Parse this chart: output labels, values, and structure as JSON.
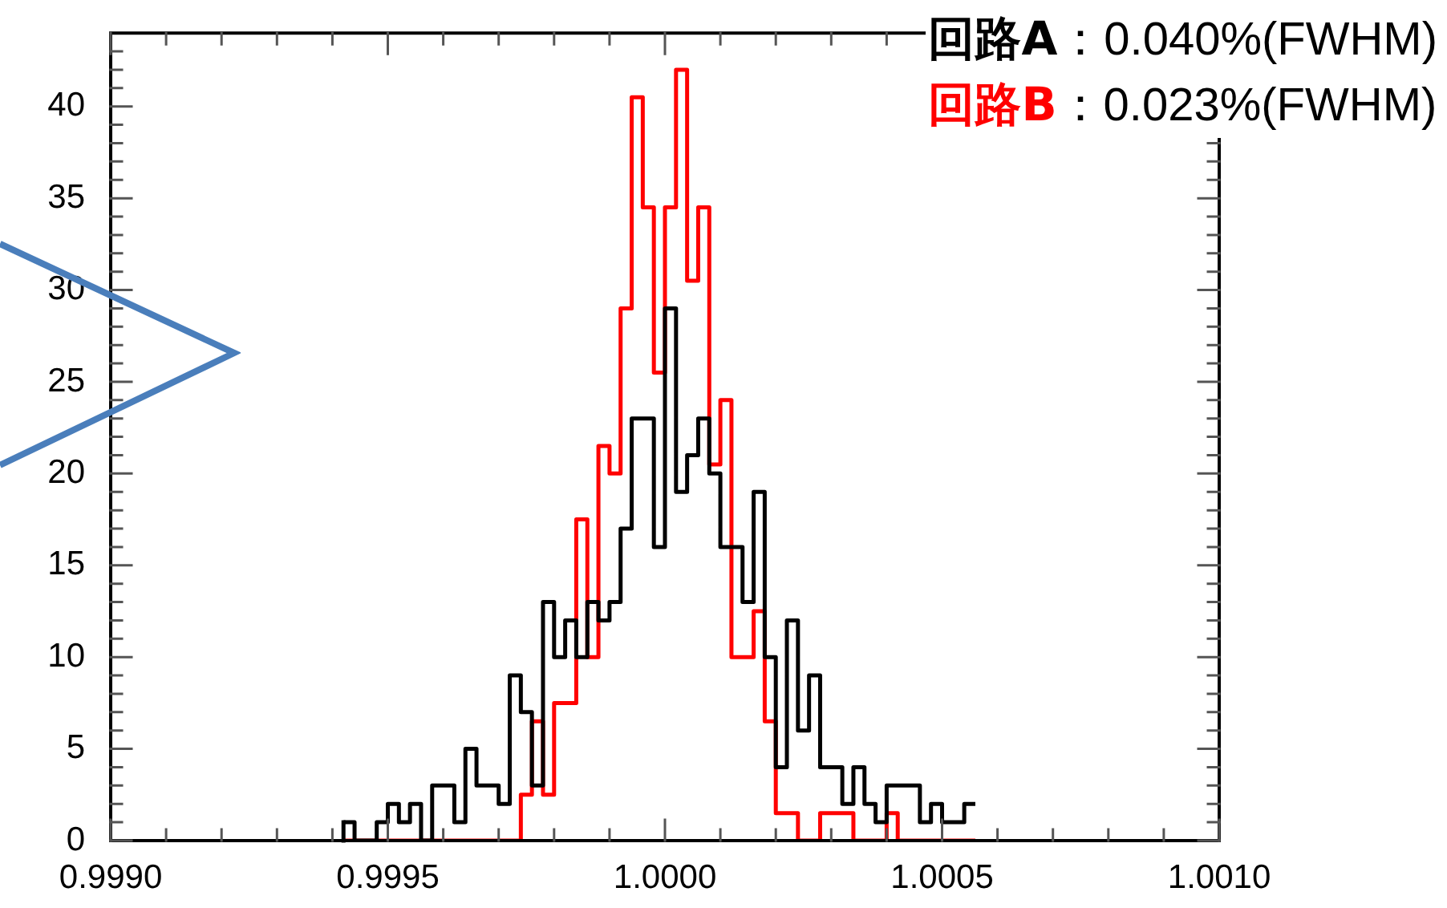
{
  "chart_data": {
    "type": "histogram",
    "bins": [
      0.99942,
      0.99944,
      0.99946,
      0.99948,
      0.9995,
      0.99952,
      0.99954,
      0.99956,
      0.99958,
      0.9996,
      0.99962,
      0.99964,
      0.99966,
      0.99968,
      0.9997,
      0.99972,
      0.99974,
      0.99976,
      0.99978,
      0.9998,
      0.99982,
      0.99984,
      0.99986,
      0.99988,
      0.9999,
      0.99992,
      0.99994,
      0.99996,
      0.99998,
      1.0,
      1.00002,
      1.00004,
      1.00006,
      1.00008,
      1.0001,
      1.00012,
      1.00014,
      1.00016,
      1.00018,
      1.0002,
      1.00022,
      1.00024,
      1.00026,
      1.00028,
      1.0003,
      1.00032,
      1.00034,
      1.00036,
      1.00038,
      1.0004,
      1.00042,
      1.00044,
      1.00046,
      1.00048,
      1.0005,
      1.00052,
      1.00054,
      1.00056
    ],
    "series": [
      {
        "name": "回路A",
        "color": "#000000",
        "values": [
          1,
          0,
          0,
          1,
          2,
          1,
          2,
          0,
          3,
          3,
          1,
          5,
          3,
          3,
          2,
          9,
          7,
          3,
          13,
          10,
          12,
          10,
          13,
          12,
          13,
          17,
          23,
          23,
          16,
          29,
          19,
          21,
          23,
          20,
          16,
          16,
          13,
          19,
          10,
          4,
          12,
          6,
          9,
          4,
          4,
          2,
          4,
          2,
          1,
          3,
          3,
          3,
          1,
          2,
          1,
          1,
          2
        ]
      },
      {
        "name": "回路B",
        "color": "#ff0000",
        "values": [
          0,
          0,
          0,
          0,
          0,
          0,
          0,
          0,
          0,
          0,
          0,
          0,
          0,
          0,
          0,
          0,
          2.5,
          6.5,
          2.5,
          7.5,
          7.5,
          17.5,
          10,
          21.5,
          20,
          29,
          40.5,
          34.5,
          25.5,
          34.5,
          42,
          30.5,
          34.5,
          20.5,
          24,
          10,
          10,
          12.5,
          6.5,
          1.5,
          1.5,
          0,
          0,
          1.5,
          1.5,
          1.5,
          0,
          0,
          0,
          1.5,
          0,
          0,
          0,
          0,
          0,
          0,
          0
        ]
      }
    ],
    "annotations": [
      "：0.040%(FWHM)",
      "：0.023%(FWHM)"
    ],
    "legend": "top right",
    "xlim": [
      0.999,
      1.001
    ],
    "xticks": [
      {
        "value": 0.999,
        "label": "0.9990"
      },
      {
        "value": 0.9991,
        "label": null
      },
      {
        "value": 0.9992,
        "label": null
      },
      {
        "value": 0.9993,
        "label": null
      },
      {
        "value": 0.9994,
        "label": null
      },
      {
        "value": 0.9995,
        "label": "0.9995"
      },
      {
        "value": 0.9996,
        "label": null
      },
      {
        "value": 0.9997,
        "label": null
      },
      {
        "value": 0.9998,
        "label": null
      },
      {
        "value": 0.9999,
        "label": null
      },
      {
        "value": 1.0,
        "label": "1.0000"
      },
      {
        "value": 1.0001,
        "label": null
      },
      {
        "value": 1.0002,
        "label": null
      },
      {
        "value": 1.0003,
        "label": null
      },
      {
        "value": 1.0004,
        "label": null
      },
      {
        "value": 1.0005,
        "label": "1.0005"
      },
      {
        "value": 1.0006,
        "label": null
      },
      {
        "value": 1.0007,
        "label": null
      },
      {
        "value": 1.0008,
        "label": null
      },
      {
        "value": 1.0009,
        "label": null
      },
      {
        "value": 1.001,
        "label": "1.0010"
      }
    ],
    "ylim": [
      0,
      44
    ],
    "yticks": [
      0,
      {
        "value": 1,
        "label": null
      },
      {
        "value": 2,
        "label": null
      },
      {
        "value": 3,
        "label": null
      },
      {
        "value": 4,
        "label": null
      },
      5,
      {
        "value": 6,
        "label": null
      },
      {
        "value": 7,
        "label": null
      },
      {
        "value": 8,
        "label": null
      },
      {
        "value": 9,
        "label": null
      },
      10,
      {
        "value": 11,
        "label": null
      },
      {
        "value": 12,
        "label": null
      },
      {
        "value": 13,
        "label": null
      },
      {
        "value": 14,
        "label": null
      },
      15,
      {
        "value": 16,
        "label": null
      },
      {
        "value": 17,
        "label": null
      },
      {
        "value": 18,
        "label": null
      },
      {
        "value": 19,
        "label": null
      },
      20,
      {
        "value": 21,
        "label": null
      },
      {
        "value": 22,
        "label": null
      },
      {
        "value": 23,
        "label": null
      },
      {
        "value": 24,
        "label": null
      },
      25,
      {
        "value": 26,
        "label": null
      },
      {
        "value": 27,
        "label": null
      },
      {
        "value": 28,
        "label": null
      },
      {
        "value": 29,
        "label": null
      },
      30,
      {
        "value": 31,
        "label": null
      },
      {
        "value": 32,
        "label": null
      },
      {
        "value": 33,
        "label": null
      },
      {
        "value": 34,
        "label": null
      },
      35,
      {
        "value": 36,
        "label": null
      },
      {
        "value": 37,
        "label": null
      },
      {
        "value": 38,
        "label": null
      },
      {
        "value": 39,
        "label": null
      },
      40,
      {
        "value": 41,
        "label": null
      },
      {
        "value": 42,
        "label": null
      },
      {
        "value": 43,
        "label": null
      }
    ],
    "grid": false
  }
}
